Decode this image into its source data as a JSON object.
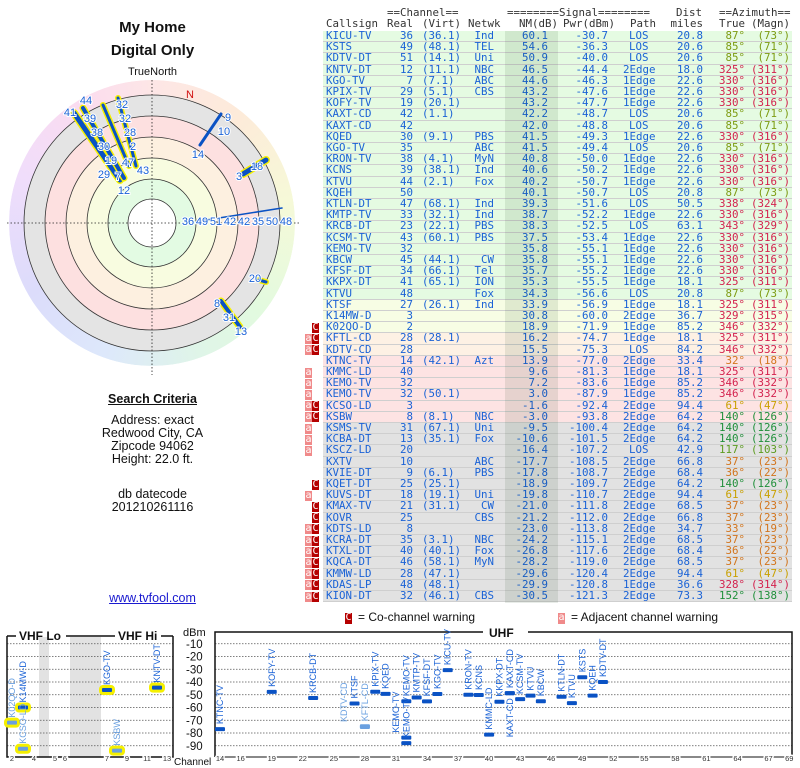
{
  "left_panel": {
    "title_line1": "My Home",
    "title_line2": "Digital Only",
    "compass_label": "TrueNorth",
    "north_marker": "N",
    "search_criteria_heading": "Search Criteria",
    "address": "Address: exact",
    "city": "Redwood City, CA",
    "zipcode": "Zipcode 94062",
    "height": "Height: 22.0 ft.",
    "db_label": "db datecode",
    "db_value": "201210261116",
    "site_link": "www.tvfool.com"
  },
  "polar_plot": {
    "labels": [
      "32",
      "32",
      "28",
      "2",
      "44",
      "41",
      "39",
      "38",
      "30",
      "19",
      "29",
      "47",
      "43",
      "7",
      "12",
      "9",
      "10",
      "14",
      "3",
      "18",
      "36",
      "49",
      "51",
      "42",
      "42",
      "35",
      "50",
      "48",
      "20",
      "8",
      "31",
      "13"
    ]
  },
  "table": {
    "group_headers": {
      "channel": "==Channel==",
      "signal": "========Signal========",
      "dist": "Dist",
      "azimuth": "==Azimuth=="
    },
    "columns": {
      "callsign": "Callsign",
      "real": "Real",
      "virt": "(Virt)",
      "netwk": "Netwk",
      "nm": "NM(dB)",
      "pwr": "Pwr(dBm)",
      "path": "Path",
      "dist": "miles",
      "true": "True",
      "magn": "(Magn)"
    },
    "tier_colors": {
      "green": "#e5fbe2",
      "yellow": "#f7fde4",
      "orange": "#fdf1e4",
      "pink": "#fde3e3",
      "gray": "#e2e2e2"
    },
    "azimuth_colors": {
      "olive": "#7d9b12",
      "crimson": "#d3224e",
      "orange": "#d2741c",
      "gold": "#c9a000",
      "green": "#1f8f3a",
      "lime": "#5c9c20"
    },
    "flag_colors": {
      "co_channel": "#b50000",
      "adjacent": "#f08a8a"
    },
    "rows": [
      {
        "flags": "",
        "callsign": "KICU-TV",
        "real": "36",
        "virt": "(36.1)",
        "netwk": "Ind",
        "nm": "60.1",
        "pwr": "-30.7",
        "path": "LOS",
        "dist": "20.8",
        "true": "87°",
        "magn": "(73°)",
        "tier": "green",
        "az": "olive"
      },
      {
        "flags": "",
        "callsign": "KSTS",
        "real": "49",
        "virt": "(48.1)",
        "netwk": "TEL",
        "nm": "54.6",
        "pwr": "-36.3",
        "path": "LOS",
        "dist": "20.6",
        "true": "85°",
        "magn": "(71°)",
        "tier": "green",
        "az": "olive"
      },
      {
        "flags": "",
        "callsign": "KDTV-DT",
        "real": "51",
        "virt": "(14.1)",
        "netwk": "Uni",
        "nm": "50.9",
        "pwr": "-40.0",
        "path": "LOS",
        "dist": "20.6",
        "true": "85°",
        "magn": "(71°)",
        "tier": "green",
        "az": "olive"
      },
      {
        "flags": "",
        "callsign": "KNTV-DT",
        "real": "12",
        "virt": "(11.1)",
        "netwk": "NBC",
        "nm": "46.5",
        "pwr": "-44.4",
        "path": "2Edge",
        "dist": "18.0",
        "true": "325°",
        "magn": "(311°)",
        "tier": "green",
        "az": "crimson"
      },
      {
        "flags": "",
        "callsign": "KGO-TV",
        "real": "7",
        "virt": "(7.1)",
        "netwk": "ABC",
        "nm": "44.6",
        "pwr": "-46.3",
        "path": "1Edge",
        "dist": "22.6",
        "true": "330°",
        "magn": "(316°)",
        "tier": "green",
        "az": "crimson"
      },
      {
        "flags": "",
        "callsign": "KPIX-TV",
        "real": "29",
        "virt": "(5.1)",
        "netwk": "CBS",
        "nm": "43.2",
        "pwr": "-47.6",
        "path": "1Edge",
        "dist": "22.6",
        "true": "330°",
        "magn": "(316°)",
        "tier": "green",
        "az": "crimson"
      },
      {
        "flags": "",
        "callsign": "KOFY-TV",
        "real": "19",
        "virt": "(20.1)",
        "netwk": "",
        "nm": "43.2",
        "pwr": "-47.7",
        "path": "1Edge",
        "dist": "22.6",
        "true": "330°",
        "magn": "(316°)",
        "tier": "green",
        "az": "crimson"
      },
      {
        "flags": "",
        "callsign": "KAXT-CD",
        "real": "42",
        "virt": "(1.1)",
        "netwk": "",
        "nm": "42.2",
        "pwr": "-48.7",
        "path": "LOS",
        "dist": "20.6",
        "true": "85°",
        "magn": "(71°)",
        "tier": "green",
        "az": "olive"
      },
      {
        "flags": "",
        "callsign": "KAXT-CD",
        "real": "42",
        "virt": "",
        "netwk": "",
        "nm": "42.0",
        "pwr": "-48.8",
        "path": "LOS",
        "dist": "20.6",
        "true": "85°",
        "magn": "(71°)",
        "tier": "green",
        "az": "olive"
      },
      {
        "flags": "",
        "callsign": "KQED",
        "real": "30",
        "virt": "(9.1)",
        "netwk": "PBS",
        "nm": "41.5",
        "pwr": "-49.3",
        "path": "1Edge",
        "dist": "22.6",
        "true": "330°",
        "magn": "(316°)",
        "tier": "green",
        "az": "crimson"
      },
      {
        "flags": "",
        "callsign": "KGO-TV",
        "real": "35",
        "virt": "",
        "netwk": "ABC",
        "nm": "41.5",
        "pwr": "-49.4",
        "path": "LOS",
        "dist": "20.6",
        "true": "85°",
        "magn": "(71°)",
        "tier": "green",
        "az": "olive"
      },
      {
        "flags": "",
        "callsign": "KRON-TV",
        "real": "38",
        "virt": "(4.1)",
        "netwk": "MyN",
        "nm": "40.8",
        "pwr": "-50.0",
        "path": "1Edge",
        "dist": "22.6",
        "true": "330°",
        "magn": "(316°)",
        "tier": "green",
        "az": "crimson"
      },
      {
        "flags": "",
        "callsign": "KCNS",
        "real": "39",
        "virt": "(38.1)",
        "netwk": "Ind",
        "nm": "40.6",
        "pwr": "-50.2",
        "path": "1Edge",
        "dist": "22.6",
        "true": "330°",
        "magn": "(316°)",
        "tier": "green",
        "az": "crimson"
      },
      {
        "flags": "",
        "callsign": "KTVU",
        "real": "44",
        "virt": "(2.1)",
        "netwk": "Fox",
        "nm": "40.2",
        "pwr": "-50.7",
        "path": "1Edge",
        "dist": "22.6",
        "true": "330°",
        "magn": "(316°)",
        "tier": "green",
        "az": "crimson"
      },
      {
        "flags": "",
        "callsign": "KQEH",
        "real": "50",
        "virt": "",
        "netwk": "",
        "nm": "40.1",
        "pwr": "-50.7",
        "path": "LOS",
        "dist": "20.8",
        "true": "87°",
        "magn": "(73°)",
        "tier": "green",
        "az": "olive"
      },
      {
        "flags": "",
        "callsign": "KTLN-DT",
        "real": "47",
        "virt": "(68.1)",
        "netwk": "Ind",
        "nm": "39.3",
        "pwr": "-51.6",
        "path": "LOS",
        "dist": "50.5",
        "true": "338°",
        "magn": "(324°)",
        "tier": "green",
        "az": "crimson"
      },
      {
        "flags": "",
        "callsign": "KMTP-TV",
        "real": "33",
        "virt": "(32.1)",
        "netwk": "Ind",
        "nm": "38.7",
        "pwr": "-52.2",
        "path": "1Edge",
        "dist": "22.6",
        "true": "330°",
        "magn": "(316°)",
        "tier": "green",
        "az": "crimson"
      },
      {
        "flags": "",
        "callsign": "KRCB-DT",
        "real": "23",
        "virt": "(22.1)",
        "netwk": "PBS",
        "nm": "38.3",
        "pwr": "-52.5",
        "path": "LOS",
        "dist": "63.1",
        "true": "343°",
        "magn": "(329°)",
        "tier": "green",
        "az": "crimson"
      },
      {
        "flags": "",
        "callsign": "KCSM-TV",
        "real": "43",
        "virt": "(60.1)",
        "netwk": "PBS",
        "nm": "37.5",
        "pwr": "-53.4",
        "path": "1Edge",
        "dist": "22.6",
        "true": "330°",
        "magn": "(316°)",
        "tier": "green",
        "az": "crimson"
      },
      {
        "flags": "",
        "callsign": "KEMO-TV",
        "real": "32",
        "virt": "",
        "netwk": "",
        "nm": "35.8",
        "pwr": "-55.1",
        "path": "1Edge",
        "dist": "22.6",
        "true": "330°",
        "magn": "(316°)",
        "tier": "green",
        "az": "crimson"
      },
      {
        "flags": "",
        "callsign": "KBCW",
        "real": "45",
        "virt": "(44.1)",
        "netwk": "CW",
        "nm": "35.8",
        "pwr": "-55.1",
        "path": "1Edge",
        "dist": "22.6",
        "true": "330°",
        "magn": "(316°)",
        "tier": "green",
        "az": "crimson"
      },
      {
        "flags": "",
        "callsign": "KFSF-DT",
        "real": "34",
        "virt": "(66.1)",
        "netwk": "Tel",
        "nm": "35.7",
        "pwr": "-55.2",
        "path": "1Edge",
        "dist": "22.6",
        "true": "330°",
        "magn": "(316°)",
        "tier": "green",
        "az": "crimson"
      },
      {
        "flags": "",
        "callsign": "KKPX-DT",
        "real": "41",
        "virt": "(65.1)",
        "netwk": "ION",
        "nm": "35.3",
        "pwr": "-55.5",
        "path": "1Edge",
        "dist": "18.1",
        "true": "325°",
        "magn": "(311°)",
        "tier": "green",
        "az": "crimson"
      },
      {
        "flags": "",
        "callsign": "KTVU",
        "real": "48",
        "virt": "",
        "netwk": "Fox",
        "nm": "34.3",
        "pwr": "-56.6",
        "path": "LOS",
        "dist": "20.8",
        "true": "87°",
        "magn": "(73°)",
        "tier": "green",
        "az": "olive"
      },
      {
        "flags": "",
        "callsign": "KTSF",
        "real": "27",
        "virt": "(26.1)",
        "netwk": "Ind",
        "nm": "33.9",
        "pwr": "-56.9",
        "path": "1Edge",
        "dist": "18.1",
        "true": "325°",
        "magn": "(311°)",
        "tier": "yellow",
        "az": "crimson"
      },
      {
        "flags": "",
        "callsign": "K14MW-D",
        "real": "3",
        "virt": "",
        "netwk": "",
        "nm": "30.8",
        "pwr": "-60.0",
        "path": "2Edge",
        "dist": "36.7",
        "true": "329°",
        "magn": "(315°)",
        "tier": "yellow",
        "az": "crimson"
      },
      {
        "flags": "C",
        "callsign": "K02QO-D",
        "real": "2",
        "virt": "",
        "netwk": "",
        "nm": "18.9",
        "pwr": "-71.9",
        "path": "1Edge",
        "dist": "85.2",
        "true": "346°",
        "magn": "(332°)",
        "tier": "yellow",
        "az": "crimson"
      },
      {
        "flags": "aC",
        "callsign": "KFTL-CD",
        "real": "28",
        "virt": "(28.1)",
        "netwk": "",
        "nm": "16.2",
        "pwr": "-74.7",
        "path": "1Edge",
        "dist": "18.1",
        "true": "325°",
        "magn": "(311°)",
        "tier": "orange",
        "az": "crimson"
      },
      {
        "flags": "aC",
        "callsign": "KDTV-CD",
        "real": "28",
        "virt": "",
        "netwk": "",
        "nm": "15.5",
        "pwr": "-75.3",
        "path": "LOS",
        "dist": "84.2",
        "true": "346°",
        "magn": "(332°)",
        "tier": "orange",
        "az": "crimson"
      },
      {
        "flags": "",
        "callsign": "KTNC-TV",
        "real": "14",
        "virt": "(42.1)",
        "netwk": "Azt",
        "nm": "13.9",
        "pwr": "-77.0",
        "path": "2Edge",
        "dist": "33.4",
        "true": "32°",
        "magn": "(18°)",
        "tier": "pink",
        "az": "orange"
      },
      {
        "flags": "a",
        "callsign": "KMMC-LD",
        "real": "40",
        "virt": "",
        "netwk": "",
        "nm": "9.6",
        "pwr": "-81.3",
        "path": "1Edge",
        "dist": "18.1",
        "true": "325°",
        "magn": "(311°)",
        "tier": "pink",
        "az": "crimson"
      },
      {
        "flags": "a",
        "callsign": "KEMO-TV",
        "real": "32",
        "virt": "",
        "netwk": "",
        "nm": "7.2",
        "pwr": "-83.6",
        "path": "1Edge",
        "dist": "85.2",
        "true": "346°",
        "magn": "(332°)",
        "tier": "pink",
        "az": "crimson"
      },
      {
        "flags": "a",
        "callsign": "KEMO-TV",
        "real": "32",
        "virt": "(50.1)",
        "netwk": "",
        "nm": "3.0",
        "pwr": "-87.9",
        "path": "1Edge",
        "dist": "85.2",
        "true": "346°",
        "magn": "(332°)",
        "tier": "pink",
        "az": "crimson"
      },
      {
        "flags": "aC",
        "callsign": "KCSO-LD",
        "real": "3",
        "virt": "",
        "netwk": "",
        "nm": "-1.6",
        "pwr": "-92.4",
        "path": "2Edge",
        "dist": "94.4",
        "true": "61°",
        "magn": "(47°)",
        "tier": "pink",
        "az": "gold"
      },
      {
        "flags": "aC",
        "callsign": "KSBW",
        "real": "8",
        "virt": "(8.1)",
        "netwk": "NBC",
        "nm": "-3.0",
        "pwr": "-93.8",
        "path": "2Edge",
        "dist": "64.2",
        "true": "140°",
        "magn": "(126°)",
        "tier": "pink",
        "az": "green"
      },
      {
        "flags": "a",
        "callsign": "KSMS-TV",
        "real": "31",
        "virt": "(67.1)",
        "netwk": "Uni",
        "nm": "-9.5",
        "pwr": "-100.4",
        "path": "2Edge",
        "dist": "64.2",
        "true": "140°",
        "magn": "(126°)",
        "tier": "gray",
        "az": "green"
      },
      {
        "flags": "a",
        "callsign": "KCBA-DT",
        "real": "13",
        "virt": "(35.1)",
        "netwk": "Fox",
        "nm": "-10.6",
        "pwr": "-101.5",
        "path": "2Edge",
        "dist": "64.2",
        "true": "140°",
        "magn": "(126°)",
        "tier": "gray",
        "az": "green"
      },
      {
        "flags": "a",
        "callsign": "KSCZ-LD",
        "real": "20",
        "virt": "",
        "netwk": "",
        "nm": "-16.4",
        "pwr": "-107.2",
        "path": "LOS",
        "dist": "42.9",
        "true": "117°",
        "magn": "(103°)",
        "tier": "gray",
        "az": "lime"
      },
      {
        "flags": "",
        "callsign": "KXTV",
        "real": "10",
        "virt": "",
        "netwk": "ABC",
        "nm": "-17.7",
        "pwr": "-108.5",
        "path": "2Edge",
        "dist": "66.8",
        "true": "37°",
        "magn": "(23°)",
        "tier": "gray",
        "az": "orange"
      },
      {
        "flags": "",
        "callsign": "KVIE-DT",
        "real": "9",
        "virt": "(6.1)",
        "netwk": "PBS",
        "nm": "-17.8",
        "pwr": "-108.7",
        "path": "2Edge",
        "dist": "68.4",
        "true": "36°",
        "magn": "(22°)",
        "tier": "gray",
        "az": "orange"
      },
      {
        "flags": "C",
        "callsign": "KQET-DT",
        "real": "25",
        "virt": "(25.1)",
        "netwk": "",
        "nm": "-18.9",
        "pwr": "-109.7",
        "path": "2Edge",
        "dist": "64.2",
        "true": "140°",
        "magn": "(126°)",
        "tier": "gray",
        "az": "green"
      },
      {
        "flags": "a",
        "callsign": "KUVS-DT",
        "real": "18",
        "virt": "(19.1)",
        "netwk": "Uni",
        "nm": "-19.8",
        "pwr": "-110.7",
        "path": "2Edge",
        "dist": "94.4",
        "true": "61°",
        "magn": "(47°)",
        "tier": "gray",
        "az": "gold"
      },
      {
        "flags": "C",
        "callsign": "KMAX-TV",
        "real": "21",
        "virt": "(31.1)",
        "netwk": "CW",
        "nm": "-21.0",
        "pwr": "-111.8",
        "path": "2Edge",
        "dist": "68.5",
        "true": "37°",
        "magn": "(23°)",
        "tier": "gray",
        "az": "orange"
      },
      {
        "flags": "C",
        "callsign": "KOVR",
        "real": "25",
        "virt": "",
        "netwk": "CBS",
        "nm": "-21.2",
        "pwr": "-112.0",
        "path": "2Edge",
        "dist": "66.8",
        "true": "37°",
        "magn": "(23°)",
        "tier": "gray",
        "az": "orange"
      },
      {
        "flags": "aC",
        "callsign": "KDTS-LD",
        "real": "8",
        "virt": "",
        "netwk": "",
        "nm": "-23.0",
        "pwr": "-113.8",
        "path": "2Edge",
        "dist": "34.7",
        "true": "33°",
        "magn": "(19°)",
        "tier": "gray",
        "az": "orange"
      },
      {
        "flags": "aC",
        "callsign": "KCRA-DT",
        "real": "35",
        "virt": "(3.1)",
        "netwk": "NBC",
        "nm": "-24.2",
        "pwr": "-115.1",
        "path": "2Edge",
        "dist": "68.5",
        "true": "37°",
        "magn": "(23°)",
        "tier": "gray",
        "az": "orange"
      },
      {
        "flags": "aC",
        "callsign": "KTXL-DT",
        "real": "40",
        "virt": "(40.1)",
        "netwk": "Fox",
        "nm": "-26.8",
        "pwr": "-117.6",
        "path": "2Edge",
        "dist": "68.4",
        "true": "36°",
        "magn": "(22°)",
        "tier": "gray",
        "az": "orange"
      },
      {
        "flags": "aC",
        "callsign": "KQCA-DT",
        "real": "46",
        "virt": "(58.1)",
        "netwk": "MyN",
        "nm": "-28.2",
        "pwr": "-119.0",
        "path": "2Edge",
        "dist": "68.5",
        "true": "37°",
        "magn": "(23°)",
        "tier": "gray",
        "az": "orange"
      },
      {
        "flags": "aC",
        "callsign": "KMMW-LD",
        "real": "28",
        "virt": "(47.1)",
        "netwk": "",
        "nm": "-29.6",
        "pwr": "-120.4",
        "path": "2Edge",
        "dist": "94.4",
        "true": "61°",
        "magn": "(47°)",
        "tier": "gray",
        "az": "gold"
      },
      {
        "flags": "aC",
        "callsign": "KDAS-LP",
        "real": "48",
        "virt": "(48.1)",
        "netwk": "",
        "nm": "-29.9",
        "pwr": "-120.8",
        "path": "1Edge",
        "dist": "36.6",
        "true": "328°",
        "magn": "(314°)",
        "tier": "gray",
        "az": "crimson"
      },
      {
        "flags": "aC",
        "callsign": "KION-DT",
        "real": "32",
        "virt": "(46.1)",
        "netwk": "CBS",
        "nm": "-30.5",
        "pwr": "-121.3",
        "path": "2Edge",
        "dist": "73.3",
        "true": "152°",
        "magn": "(138°)",
        "tier": "gray",
        "az": "green"
      }
    ]
  },
  "legend": {
    "co_channel_glyph": "C",
    "co_channel_text": "= Co-channel warning",
    "adjacent_glyph": "a",
    "adjacent_text": "= Adjacent channel warning"
  },
  "spectrum_chart": {
    "vhf_lo_label": "VHF Lo",
    "vhf_hi_label": "VHF Hi",
    "uhf_label": "UHF",
    "y_unit": "dBm",
    "x_label": "Channel",
    "y_ticks": [
      "-10",
      "-20",
      "-30",
      "-40",
      "-50",
      "-60",
      "-70",
      "-80",
      "-90"
    ],
    "vhf_ticks": [
      "2",
      "4",
      "5",
      "6",
      "7",
      "9",
      "11",
      "13"
    ],
    "uhf_ticks": [
      "14",
      "16",
      "19",
      "22",
      "25",
      "28",
      "31",
      "34",
      "37",
      "40",
      "43",
      "46",
      "49",
      "52",
      "55",
      "58",
      "61",
      "64",
      "67",
      "69"
    ],
    "bar_color": "#0a52c4",
    "weak_bar_color": "#6aa0e0",
    "highlight_color": "#f5f000"
  }
}
